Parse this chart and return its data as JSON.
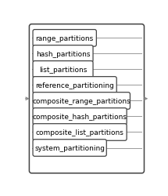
{
  "labels": [
    "range_partitions",
    "hash_partitions",
    "list_partitions",
    "reference_partitioning",
    "composite_range_partitions",
    "composite_hash_partitions",
    "composite_list_partitions",
    "system_partitioning"
  ],
  "bg_color": "#ffffff",
  "box_color": "#ffffff",
  "box_edge_color": "#444444",
  "line_color": "#999999",
  "arrow_color": "#888888",
  "outer_box_color": "#444444",
  "font_size": 6.5,
  "font_family": "DejaVu Sans"
}
